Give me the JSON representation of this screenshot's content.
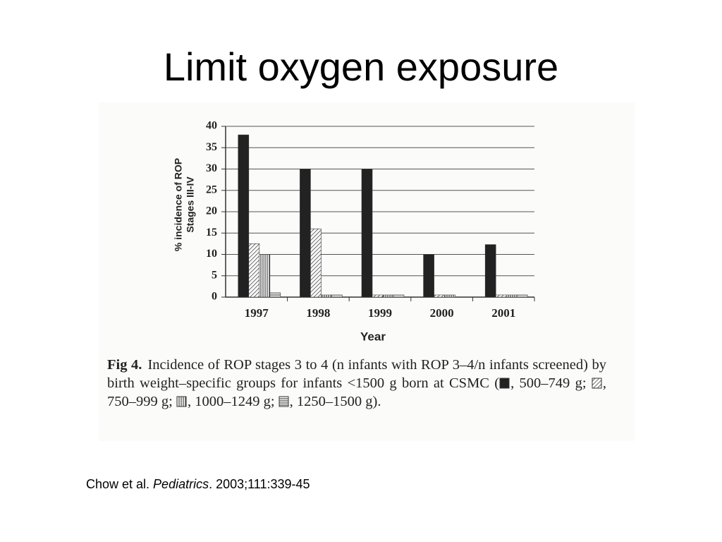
{
  "slide": {
    "title": "Limit oxygen exposure",
    "citation": {
      "authors": "Chow et al. ",
      "journal": "Pediatrics",
      "details": ". 2003;111:339-45"
    }
  },
  "caption": {
    "label": "Fig 4.",
    "text": "Incidence of ROP stages 3 to 4 (n infants with ROP 3–4/n infants screened) by birth weight–specific groups for infants <1500 g born at CSMC (",
    "separator": ", ",
    "delimiter": "; ",
    "close": ")."
  },
  "chart_data": {
    "type": "bar",
    "categories": [
      "1997",
      "1998",
      "1999",
      "2000",
      "2001"
    ],
    "series": [
      {
        "name": "500–749 g",
        "color": "#222222",
        "pattern": "solid",
        "values": [
          38,
          30,
          30,
          10,
          12.3
        ]
      },
      {
        "name": "750–999 g",
        "color": "#444444",
        "pattern": "diagonal",
        "values": [
          12.5,
          16,
          0.5,
          0.5,
          0.5
        ]
      },
      {
        "name": "1000–1249 g",
        "color": "#444444",
        "pattern": "vertical",
        "values": [
          10,
          0.5,
          0.5,
          0.5,
          0.5
        ]
      },
      {
        "name": "1250–1500 g",
        "color": "#444444",
        "pattern": "horizontal",
        "values": [
          1,
          0.5,
          0.5,
          0,
          0.5
        ]
      }
    ],
    "xlabel": "Year",
    "ylabel": [
      "% incidence of ROP",
      "Stages III-IV"
    ],
    "ylim": [
      0,
      40
    ],
    "yticks": [
      0,
      5,
      10,
      15,
      20,
      25,
      30,
      35,
      40
    ],
    "grid": true
  }
}
